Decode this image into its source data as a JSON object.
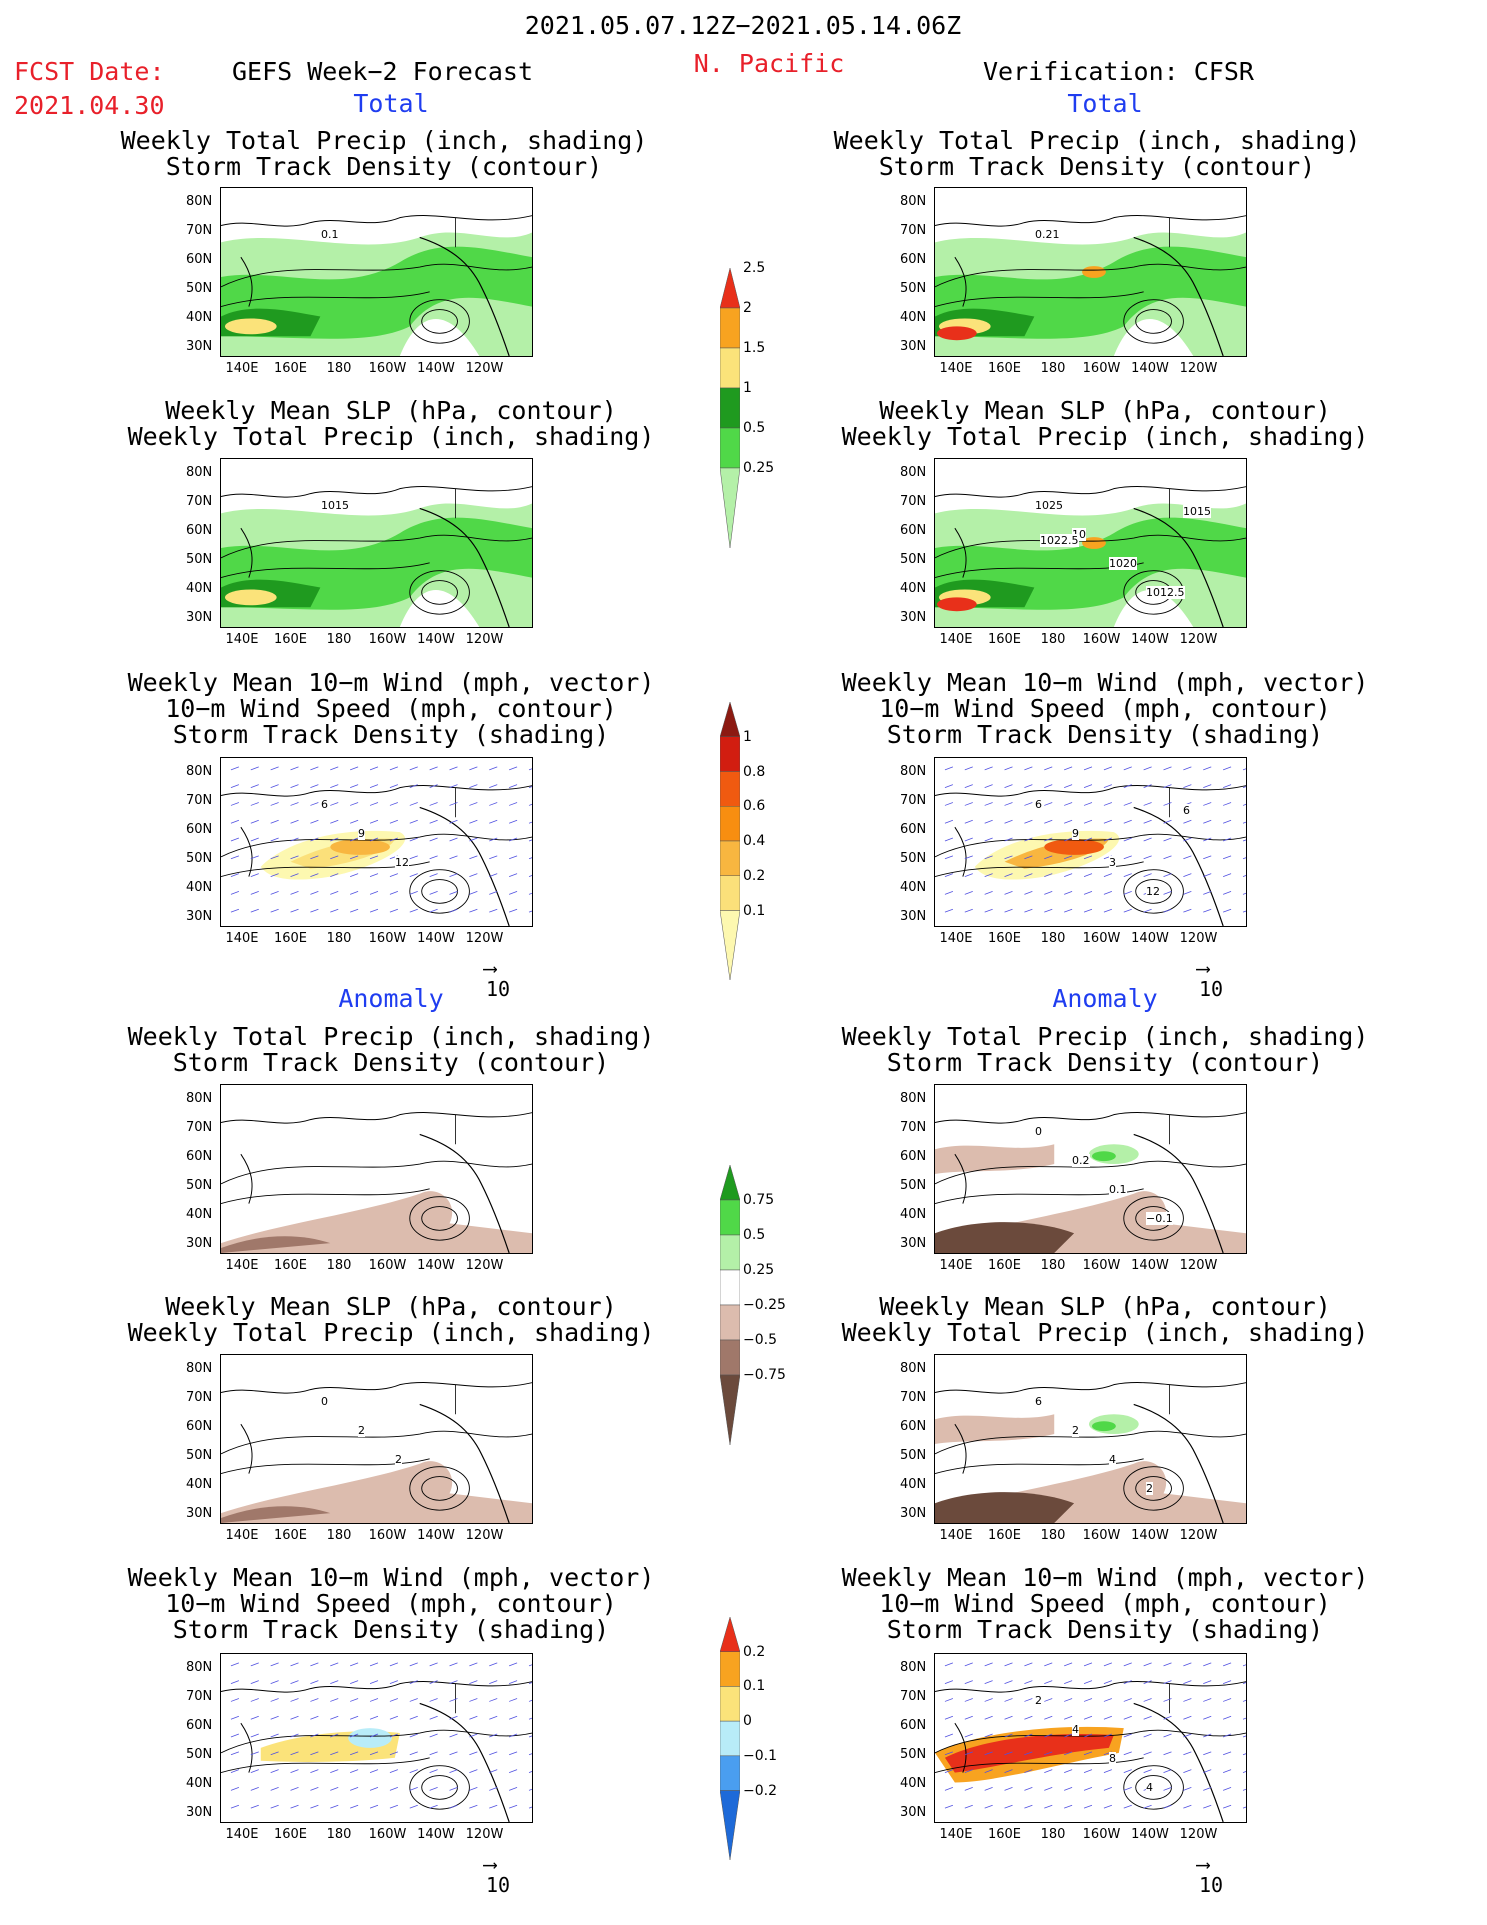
{
  "header": {
    "period": "2021.05.07.12Z−2021.05.14.06Z",
    "region": "N. Pacific",
    "fcst_label": "FCST Date:",
    "fcst_date": "2021.04.30",
    "left_title": "GEFS Week−2 Forecast",
    "right_title": "Verification: CFSR"
  },
  "sections": {
    "total": "Total",
    "anomaly": "Anomaly"
  },
  "panel_titles": {
    "precip_storm": [
      "Weekly Total Precip (inch, shading)",
      "Storm Track Density (contour)"
    ],
    "slp_precip": [
      "Weekly Mean SLP (hPa, contour)",
      "Weekly Total Precip (inch, shading)"
    ],
    "wind_storm": [
      "Weekly Mean 10−m Wind (mph, vector)",
      "10−m Wind Speed (mph, contour)",
      "Storm Track Density (shading)"
    ]
  },
  "axes": {
    "lat_ticks": [
      "80N",
      "70N",
      "60N",
      "50N",
      "40N",
      "30N"
    ],
    "lon_ticks": [
      "140E",
      "160E",
      "180",
      "160W",
      "140W",
      "120W"
    ]
  },
  "vector_ref": "10",
  "colorbars": {
    "precip_total": {
      "colors": [
        "#b4f0a8",
        "#50d848",
        "#1f9a1f",
        "#fbe37a",
        "#f8a320",
        "#e8301a"
      ],
      "labels": [
        "0.25",
        "0.5",
        "1",
        "1.5",
        "2",
        "2.5"
      ]
    },
    "storm_total": {
      "colors": [
        "#fdf8b0",
        "#fbe07a",
        "#f8b640",
        "#f88e10",
        "#f05a10",
        "#d21d10",
        "#8c1a12"
      ],
      "labels": [
        "0.1",
        "0.2",
        "0.4",
        "0.6",
        "0.8",
        "1"
      ]
    },
    "precip_anom": {
      "colors": [
        "#6b4a3c",
        "#a0786a",
        "#dcbcae",
        "#ffffff",
        "#b4f0a8",
        "#50d848",
        "#1f9a1f"
      ],
      "labels": [
        "−0.75",
        "−0.5",
        "−0.25",
        "0.25",
        "0.5",
        "0.75"
      ]
    },
    "storm_anom": {
      "colors": [
        "#1e6ad8",
        "#4a9ef0",
        "#b8ecf8",
        "#fbe37a",
        "#f8a320",
        "#e8301a"
      ],
      "labels": [
        "−0.2",
        "−0.1",
        "0",
        "0.1",
        "0.2"
      ]
    }
  },
  "contour_labels": {
    "f_precip_total": [
      "0.1"
    ],
    "v_precip_total": [
      "0.21"
    ],
    "f_slp_total": [
      "1015"
    ],
    "v_slp_total": [
      "1025",
      "10",
      "1020",
      "1012.5",
      "1015",
      "1022.5"
    ],
    "f_wind_total": [
      "6",
      "9",
      "12"
    ],
    "v_wind_total": [
      "6",
      "9",
      "3",
      "12",
      "6"
    ],
    "v_precip_anom": [
      "0",
      "0.2",
      "0.1",
      "−0.1"
    ],
    "f_slp_anom": [
      "0",
      "2",
      "2"
    ],
    "v_slp_anom": [
      "6",
      "2",
      "4",
      "2"
    ],
    "v_wind_anom": [
      "2",
      "4",
      "8",
      "4"
    ]
  }
}
